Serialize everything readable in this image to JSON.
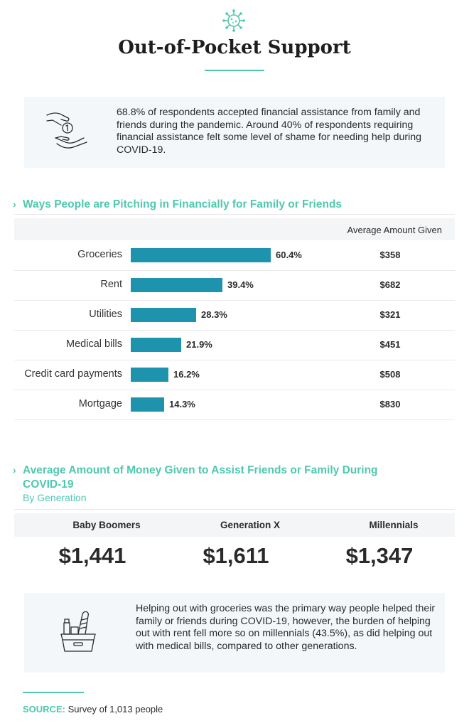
{
  "title": "Out-of-Pocket Support",
  "intro_callout": {
    "text": "68.8% of respondents accepted financial assistance from family and friends during the pandemic. Around 40% of respondents requiring financial assistance felt some level of shame for needing help during COVID-19."
  },
  "chart_data": [
    {
      "type": "bar",
      "title": "Ways People are Pitching in Financially for Family or Friends",
      "categories": [
        "Groceries",
        "Rent",
        "Utilities",
        "Medical bills",
        "Credit card payments",
        "Mortgage"
      ],
      "values": [
        60.4,
        39.4,
        28.3,
        21.9,
        16.2,
        14.3
      ],
      "value_labels": [
        "60.4%",
        "39.4%",
        "28.3%",
        "21.9%",
        "16.2%",
        "14.3%"
      ],
      "extra_column": {
        "header": "Average Amount Given",
        "values": [
          "$358",
          "$682",
          "$321",
          "$451",
          "$508",
          "$830"
        ]
      },
      "bar_color": "#1d93ad"
    },
    {
      "type": "table",
      "title_line1": "Average Amount of Money Given to Assist Friends or Family During",
      "title_line2": "COVID-19",
      "subtitle": "By Generation",
      "categories": [
        "Baby Boomers",
        "Generation X",
        "Millennials"
      ],
      "values": [
        "$1,441",
        "$1,611",
        "$1,347"
      ]
    }
  ],
  "closing_callout": {
    "text": "Helping out with groceries was the primary way people helped their family or friends during COVID-19, however, the burden of helping out with rent fell more so on millennials (43.5%), as did helping out with medical bills, compared to other generations."
  },
  "source": {
    "label": "SOURCE:",
    "text": " Survey of 1,013 people"
  },
  "colors": {
    "accent": "#4fc8b0",
    "bar": "#1d93ad",
    "panel": "#f3f7fa"
  },
  "icons": {
    "top": "virus-icon",
    "intro": "hand-giving-coin-icon",
    "closing": "grocery-basket-icon"
  }
}
